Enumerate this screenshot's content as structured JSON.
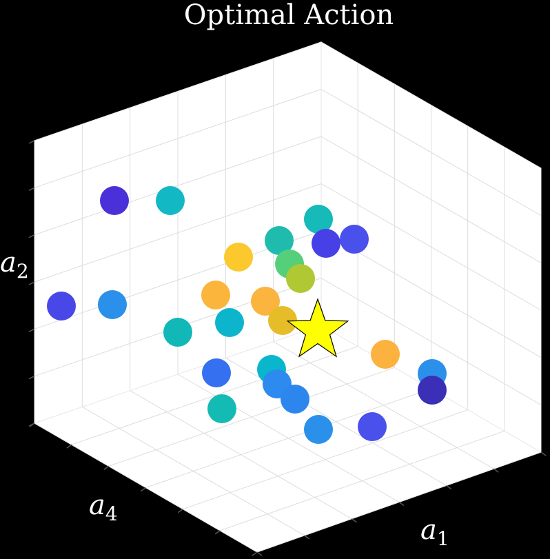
{
  "chart_data": {
    "type": "scatter",
    "title": "Optimal Action",
    "axis_labels": {
      "a1": {
        "base": "a",
        "sub": "1"
      },
      "a4": {
        "base": "a",
        "sub": "4"
      },
      "a2": {
        "base": "a",
        "sub": "2"
      }
    },
    "view": "3d",
    "grid": true,
    "colors": {
      "background": "#000000",
      "pane": "#ffffff",
      "grid": "#dcdcdc",
      "star": "#ffff00"
    },
    "points": [
      {
        "px": [
          166,
          291
        ],
        "color": "#4a30d8"
      },
      {
        "px": [
          247,
          291
        ],
        "color": "#12b8c4"
      },
      {
        "px": [
          462,
          318
        ],
        "color": "#16bab8"
      },
      {
        "px": [
          405,
          349
        ],
        "color": "#1fbcae"
      },
      {
        "px": [
          514,
          347
        ],
        "color": "#4a50ec"
      },
      {
        "px": [
          473,
          353
        ],
        "color": "#4640e6"
      },
      {
        "px": [
          346,
          373
        ],
        "color": "#fbc92e"
      },
      {
        "px": [
          420,
          383
        ],
        "color": "#56cf7a"
      },
      {
        "px": [
          436,
          404
        ],
        "color": "#afc834"
      },
      {
        "px": [
          89,
          444
        ],
        "color": "#4848e8"
      },
      {
        "px": [
          163,
          442
        ],
        "color": "#2a90ea"
      },
      {
        "px": [
          313,
          428
        ],
        "color": "#fbb53c"
      },
      {
        "px": [
          385,
          437
        ],
        "color": "#fbb43e"
      },
      {
        "px": [
          333,
          468
        ],
        "color": "#0cb4cc"
      },
      {
        "px": [
          410,
          465
        ],
        "color": "#e6bd28"
      },
      {
        "px": [
          258,
          482
        ],
        "color": "#12b8b8"
      },
      {
        "px": [
          559,
          514
        ],
        "color": "#fbb23e"
      },
      {
        "px": [
          314,
          541
        ],
        "color": "#3570f0"
      },
      {
        "px": [
          394,
          536
        ],
        "color": "#0ab6cc"
      },
      {
        "px": [
          627,
          542
        ],
        "color": "#2b90ea"
      },
      {
        "px": [
          402,
          557
        ],
        "color": "#2d8aee"
      },
      {
        "px": [
          428,
          579
        ],
        "color": "#2d86ee"
      },
      {
        "px": [
          627,
          566
        ],
        "color": "#3a2fb6"
      },
      {
        "px": [
          322,
          593
        ],
        "color": "#14bab4"
      },
      {
        "px": [
          462,
          623
        ],
        "color": "#2a90ea"
      },
      {
        "px": [
          540,
          619
        ],
        "color": "#4a50ec"
      }
    ],
    "optimal_marker": {
      "shape": "star",
      "px": [
        461,
        480
      ],
      "color": "#ffff00"
    }
  }
}
